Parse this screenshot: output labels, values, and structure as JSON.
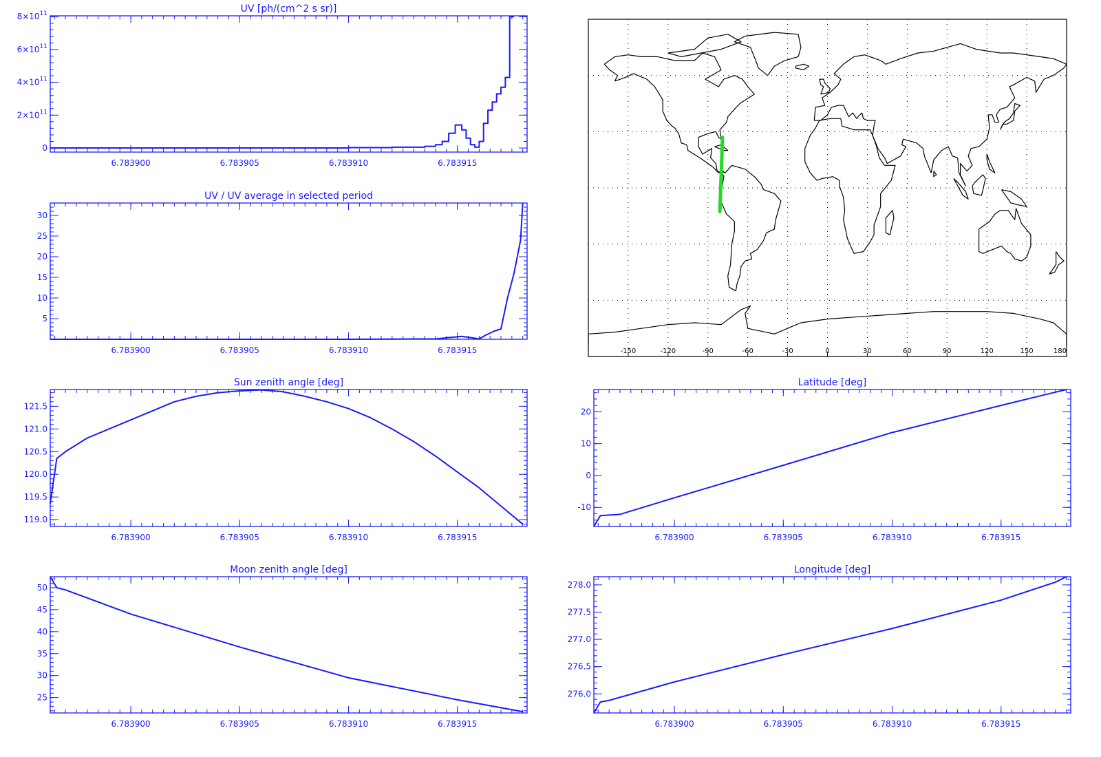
{
  "colors": {
    "plot": "#1a1aff",
    "track": "#22dd22",
    "map": "#000000"
  },
  "chart_data": [
    {
      "id": "uv",
      "type": "line",
      "step": true,
      "title": "UV [ph/(cm^2 s sr)]",
      "xlim": [
        6.7838963,
        6.7839182
      ],
      "xticks": [
        "6.783900",
        "6.783905",
        "6.783910",
        "6.783915"
      ],
      "xtick_values": [
        6.7839,
        6.783905,
        6.78391,
        6.783915
      ],
      "ylim": [
        -25000000000.0,
        805000000000.0
      ],
      "ytick_values": [
        0,
        200000000000.0,
        400000000000.0,
        600000000000.0,
        800000000000.0
      ],
      "ytick_labels": [
        {
          "base": "0",
          "exp": ""
        },
        {
          "base": "2×10",
          "exp": "11"
        },
        {
          "base": "4×10",
          "exp": "11"
        },
        {
          "base": "6×10",
          "exp": "11"
        },
        {
          "base": "8×10",
          "exp": "11"
        }
      ],
      "x": [
        6.783896,
        6.7839,
        6.78391,
        6.783912,
        6.7839135,
        6.783914,
        6.7839143,
        6.7839146,
        6.7839149,
        6.7839152,
        6.7839154,
        6.7839156,
        6.7839158,
        6.783916,
        6.7839162,
        6.7839164,
        6.7839166,
        6.7839168,
        6.783917,
        6.7839172,
        6.7839174,
        6.7839176
      ],
      "y": [
        0,
        0,
        2000000000.0,
        5000000000.0,
        10000000000.0,
        20000000000.0,
        40000000000.0,
        90000000000.0,
        140000000000.0,
        110000000000.0,
        60000000000.0,
        20000000000.0,
        5000000000.0,
        40000000000.0,
        150000000000.0,
        230000000000.0,
        280000000000.0,
        330000000000.0,
        370000000000.0,
        430000000000.0,
        800000000000.0,
        800000000000.0
      ]
    },
    {
      "id": "ratio",
      "type": "line",
      "title": "UV / UV average in selected period",
      "xlim": [
        6.7838963,
        6.7839182
      ],
      "xticks": [
        "6.783900",
        "6.783905",
        "6.783910",
        "6.783915"
      ],
      "xtick_values": [
        6.7839,
        6.783905,
        6.78391,
        6.783915
      ],
      "ylim": [
        0,
        33
      ],
      "ytick_values": [
        5,
        10,
        15,
        20,
        25,
        30
      ],
      "ytick_labels": [
        "5",
        "10",
        "15",
        "20",
        "25",
        "30"
      ],
      "x": [
        6.783896,
        6.7839,
        6.78391,
        6.783914,
        6.7839152,
        6.783916,
        6.7839163,
        6.7839167,
        6.783917,
        6.7839173,
        6.7839176,
        6.7839179,
        6.783918
      ],
      "y": [
        0,
        0,
        0,
        0.1,
        0.7,
        0.1,
        1.0,
        2.0,
        2.5,
        10,
        16,
        24,
        33
      ]
    },
    {
      "id": "sza",
      "type": "line",
      "title": "Sun zenith angle [deg]",
      "xlim": [
        6.7838963,
        6.7839182
      ],
      "xticks": [
        "6.783900",
        "6.783905",
        "6.783910",
        "6.783915"
      ],
      "xtick_values": [
        6.7839,
        6.783905,
        6.78391,
        6.783915
      ],
      "ylim": [
        118.85,
        121.87
      ],
      "ytick_values": [
        119.0,
        119.5,
        120.0,
        120.5,
        121.0,
        121.5
      ],
      "ytick_labels": [
        "119.0",
        "119.5",
        "120.0",
        "120.5",
        "121.0",
        "121.5"
      ],
      "x": [
        6.7838963,
        6.7838966,
        6.783897,
        6.783898,
        6.783899,
        6.7839,
        6.783901,
        6.783902,
        6.783903,
        6.783904,
        6.783905,
        6.783906,
        6.783907,
        6.783908,
        6.783909,
        6.78391,
        6.783911,
        6.783912,
        6.783913,
        6.783914,
        6.783915,
        6.783916,
        6.783917,
        6.783918
      ],
      "y": [
        119.35,
        120.35,
        120.5,
        120.8,
        121.0,
        121.2,
        121.4,
        121.6,
        121.72,
        121.8,
        121.84,
        121.86,
        121.82,
        121.72,
        121.6,
        121.45,
        121.25,
        121.0,
        120.72,
        120.4,
        120.05,
        119.7,
        119.3,
        118.9
      ]
    },
    {
      "id": "lat",
      "type": "line",
      "title": "Latitude [deg]",
      "xlim": [
        6.7838963,
        6.7839182
      ],
      "xticks": [
        "6.783900",
        "6.783905",
        "6.783910",
        "6.783915"
      ],
      "xtick_values": [
        6.7839,
        6.783905,
        6.78391,
        6.783915
      ],
      "ylim": [
        -16,
        27
      ],
      "ytick_values": [
        -10,
        0,
        10,
        20
      ],
      "ytick_labels": [
        "-10",
        "0",
        "10",
        "20"
      ],
      "x": [
        6.7838963,
        6.7838966,
        6.7838975,
        6.7839,
        6.783905,
        6.78391,
        6.783915,
        6.783918
      ],
      "y": [
        -16,
        -12.6,
        -12.2,
        -7.0,
        3.2,
        13.5,
        22.0,
        27.0
      ]
    },
    {
      "id": "mza",
      "type": "line",
      "title": "Moon zenith angle [deg]",
      "xlim": [
        6.7838963,
        6.7839182
      ],
      "xticks": [
        "6.783900",
        "6.783905",
        "6.783910",
        "6.783915"
      ],
      "xtick_values": [
        6.7839,
        6.783905,
        6.78391,
        6.783915
      ],
      "ylim": [
        21.5,
        52.5
      ],
      "ytick_values": [
        25,
        30,
        35,
        40,
        45,
        50
      ],
      "ytick_labels": [
        "25",
        "30",
        "35",
        "40",
        "45",
        "50"
      ],
      "x": [
        6.7838963,
        6.7838966,
        6.783897,
        6.7839,
        6.783905,
        6.78391,
        6.783915,
        6.783918
      ],
      "y": [
        52.5,
        50.0,
        49.5,
        44.0,
        36.5,
        29.5,
        24.5,
        21.8
      ]
    },
    {
      "id": "lon",
      "type": "line",
      "title": "Longitude [deg]",
      "xlim": [
        6.7838963,
        6.7839182
      ],
      "xticks": [
        "6.783900",
        "6.783905",
        "6.783910",
        "6.783915"
      ],
      "xtick_values": [
        6.7839,
        6.783905,
        6.78391,
        6.783915
      ],
      "ylim": [
        275.65,
        278.15
      ],
      "ytick_values": [
        276.0,
        276.5,
        277.0,
        277.5,
        278.0
      ],
      "ytick_labels": [
        "276.0",
        "276.5",
        "277.0",
        "277.5",
        "278.0"
      ],
      "x": [
        6.7838963,
        6.7838966,
        6.783897,
        6.7839,
        6.783905,
        6.78391,
        6.783915,
        6.7839175,
        6.783918
      ],
      "y": [
        275.65,
        275.85,
        275.88,
        276.22,
        276.72,
        277.2,
        277.72,
        278.05,
        278.15
      ]
    }
  ],
  "map": {
    "type": "map",
    "xticks": [
      "-150",
      "-120",
      "-90",
      "-60",
      "-30",
      "0",
      "30",
      "60",
      "90",
      "120",
      "150",
      "180"
    ],
    "xtick_values": [
      -150,
      -120,
      -90,
      -60,
      -30,
      0,
      30,
      60,
      90,
      120,
      150,
      180
    ],
    "lon_range": [
      -180,
      180
    ],
    "lat_range": [
      -90,
      90
    ],
    "track": {
      "lon_start": -81.0,
      "lat_start": -12.6,
      "lon_end": -79.0,
      "lat_end": 27.0
    }
  }
}
